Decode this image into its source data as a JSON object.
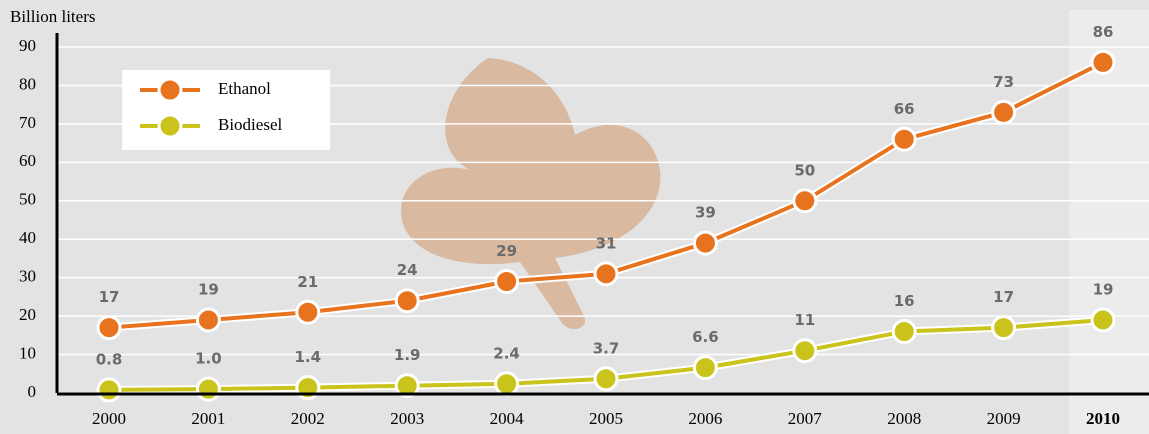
{
  "chart_data": {
    "type": "line",
    "y_label": "Billion liters",
    "categories": [
      "2000",
      "2001",
      "2002",
      "2003",
      "2004",
      "2005",
      "2006",
      "2007",
      "2008",
      "2009",
      "2010"
    ],
    "series": [
      {
        "name": "Ethanol",
        "color": "#e8731f",
        "values": [
          17,
          19,
          21,
          24,
          29,
          31,
          39,
          50,
          66,
          73,
          86
        ]
      },
      {
        "name": "Biodiesel",
        "color": "#c9c31b",
        "values": [
          0.8,
          1.0,
          1.4,
          1.9,
          2.4,
          3.7,
          6.6,
          11,
          16,
          17,
          19
        ],
        "value_labels": [
          "0.8",
          "1.0",
          "1.4",
          "1.9",
          "2.4",
          "3.7",
          "6.6",
          "11",
          "16",
          "17",
          "19"
        ]
      }
    ],
    "ylim": [
      0,
      90
    ],
    "yticks": [
      0,
      10,
      20,
      30,
      40,
      50,
      60,
      70,
      80,
      90
    ],
    "grid": true,
    "legend": "top-left"
  }
}
